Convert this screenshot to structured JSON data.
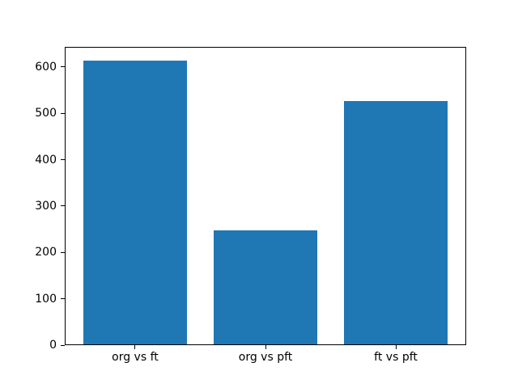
{
  "window": {
    "background": "#ffffff"
  },
  "chart_data": {
    "type": "bar",
    "title": "",
    "categories": [
      "org vs ft",
      "org vs pft",
      "ft vs pft"
    ],
    "values": [
      613,
      248,
      527
    ],
    "xlabel": "",
    "ylabel": "",
    "ylim": [
      0,
      643.65
    ],
    "yticks": [
      0,
      100,
      200,
      300,
      400,
      500,
      600
    ],
    "bar_width_fraction": 0.8,
    "bar_color": "#1f77b4",
    "axis_color": "#000000",
    "tick_label_color": "#000000",
    "plot_background": "#ffffff",
    "grid": false,
    "legend_position": "none"
  }
}
